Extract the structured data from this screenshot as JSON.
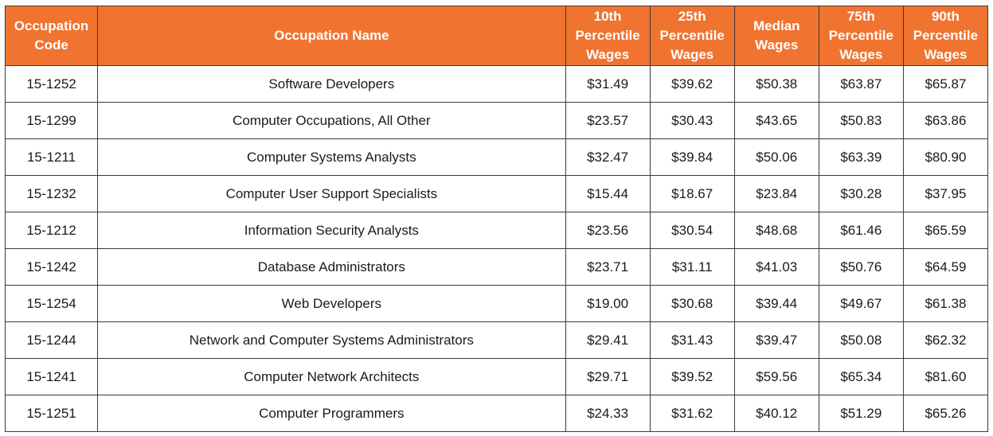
{
  "table": {
    "headers": [
      "Occupation Code",
      "Occupation Name",
      "10th Percentile Wages",
      "25th Percentile Wages",
      "Median Wages",
      "75th Percentile Wages",
      "90th Percentile Wages"
    ],
    "rows": [
      [
        "15-1252",
        "Software Developers",
        "$31.49",
        "$39.62",
        "$50.38",
        "$63.87",
        "$65.87"
      ],
      [
        "15-1299",
        "Computer Occupations, All Other",
        "$23.57",
        "$30.43",
        "$43.65",
        "$50.83",
        "$63.86"
      ],
      [
        "15-1211",
        "Computer Systems Analysts",
        "$32.47",
        "$39.84",
        "$50.06",
        "$63.39",
        "$80.90"
      ],
      [
        "15-1232",
        "Computer User Support Specialists",
        "$15.44",
        "$18.67",
        "$23.84",
        "$30.28",
        "$37.95"
      ],
      [
        "15-1212",
        "Information Security Analysts",
        "$23.56",
        "$30.54",
        "$48.68",
        "$61.46",
        "$65.59"
      ],
      [
        "15-1242",
        "Database Administrators",
        "$23.71",
        "$31.11",
        "$41.03",
        "$50.76",
        "$64.59"
      ],
      [
        "15-1254",
        "Web Developers",
        "$19.00",
        "$30.68",
        "$39.44",
        "$49.67",
        "$61.38"
      ],
      [
        "15-1244",
        "Network and Computer Systems Administrators",
        "$29.41",
        "$31.43",
        "$39.47",
        "$50.08",
        "$62.32"
      ],
      [
        "15-1241",
        "Computer Network Architects",
        "$29.71",
        "$39.52",
        "$59.56",
        "$65.34",
        "$81.60"
      ],
      [
        "15-1251",
        "Computer Programmers",
        "$24.33",
        "$31.62",
        "$40.12",
        "$51.29",
        "$65.26"
      ]
    ]
  },
  "colors": {
    "header_background": "#f07330",
    "header_text": "#ffffff",
    "border": "#3a3a3a",
    "cell_text": "#1a1a1a"
  }
}
